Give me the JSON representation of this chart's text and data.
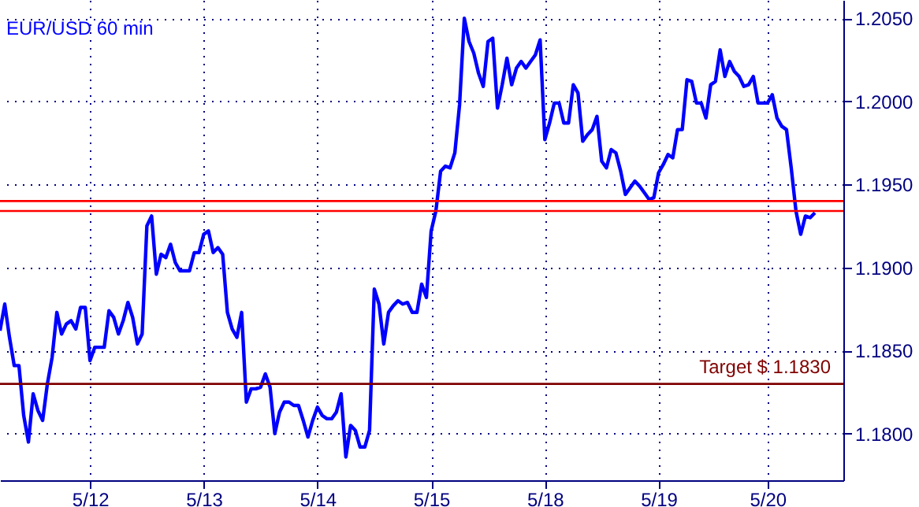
{
  "chart_data": {
    "type": "line",
    "title": "EUR/USD 60 min",
    "categories": [
      null,
      null,
      null,
      null,
      null,
      null,
      null,
      null,
      null,
      null,
      null,
      null,
      null,
      null,
      null,
      null,
      null,
      null,
      null,
      "5/12",
      null,
      null,
      null,
      null,
      null,
      null,
      null,
      null,
      null,
      null,
      null,
      null,
      null,
      null,
      null,
      null,
      null,
      null,
      null,
      null,
      null,
      null,
      null,
      "5/13",
      null,
      null,
      null,
      null,
      null,
      null,
      null,
      null,
      null,
      null,
      null,
      null,
      null,
      null,
      null,
      null,
      null,
      null,
      null,
      null,
      null,
      null,
      null,
      "5/14",
      null,
      null,
      null,
      null,
      null,
      null,
      null,
      null,
      null,
      null,
      null,
      null,
      null,
      null,
      null,
      null,
      null,
      null,
      null,
      null,
      null,
      null,
      null,
      "5/15",
      null,
      null,
      null,
      null,
      null,
      null,
      null,
      null,
      null,
      null,
      null,
      null,
      null,
      null,
      null,
      null,
      null,
      null,
      null,
      null,
      null,
      null,
      null,
      "5/18",
      null,
      null,
      null,
      null,
      null,
      null,
      null,
      null,
      null,
      null,
      null,
      null,
      null,
      null,
      null,
      null,
      null,
      null,
      null,
      null,
      null,
      null,
      null,
      "5/19",
      null,
      null,
      null,
      null,
      null,
      null,
      null,
      null,
      null,
      null,
      null,
      null,
      null,
      null,
      null,
      null,
      null,
      null,
      null,
      null,
      null,
      null,
      "5/20",
      null,
      null,
      null,
      null,
      null,
      null,
      null,
      null,
      null,
      null,
      null,
      null,
      null,
      null,
      null,
      null
    ],
    "series": [
      {
        "color": "#0000ff",
        "values": [
          1.1862,
          1.1878,
          1.1858,
          1.1841,
          1.1841,
          1.1811,
          1.1795,
          1.1824,
          1.1814,
          1.1808,
          1.183,
          1.1846,
          1.1873,
          1.186,
          1.1866,
          1.1868,
          1.1863,
          1.1876,
          1.1876,
          1.1844,
          1.1852,
          1.1852,
          1.1852,
          1.1874,
          1.187,
          1.186,
          1.1868,
          1.1879,
          1.187,
          1.1854,
          1.186,
          1.1925,
          1.1931,
          1.1896,
          1.1908,
          1.1906,
          1.1914,
          1.1903,
          1.1898,
          1.1898,
          1.1898,
          1.1909,
          1.1909,
          1.192,
          1.1922,
          1.1909,
          1.1912,
          1.1908,
          1.1873,
          1.1863,
          1.1858,
          1.1873,
          1.1819,
          1.1827,
          1.1827,
          1.1828,
          1.1836,
          1.1828,
          1.18,
          1.1813,
          1.1819,
          1.1819,
          1.1817,
          1.1817,
          1.1808,
          1.1798,
          1.1808,
          1.1816,
          1.1811,
          1.1809,
          1.1809,
          1.1813,
          1.1824,
          1.1786,
          1.1805,
          1.1802,
          1.1792,
          1.1792,
          1.1802,
          1.1887,
          1.1878,
          1.1854,
          1.1873,
          1.1877,
          1.188,
          1.1878,
          1.1879,
          1.1873,
          1.1873,
          1.189,
          1.1882,
          1.1922,
          1.1934,
          1.1958,
          1.1961,
          1.196,
          1.1969,
          1.1998,
          1.205,
          1.2036,
          1.2029,
          1.2017,
          1.2009,
          1.2036,
          1.2038,
          1.1996,
          1.201,
          1.2026,
          1.201,
          1.202,
          1.2024,
          1.202,
          1.2024,
          1.2028,
          1.2037,
          1.1977,
          1.1987,
          1.1999,
          1.1999,
          1.1987,
          1.1987,
          1.201,
          1.2005,
          1.1976,
          1.198,
          1.1983,
          1.1991,
          1.1964,
          1.196,
          1.1971,
          1.1969,
          1.1958,
          1.1944,
          1.1948,
          1.1952,
          1.1949,
          1.1945,
          1.1941,
          1.1942,
          1.1957,
          1.1962,
          1.1968,
          1.1966,
          1.1983,
          1.1983,
          1.2013,
          1.2012,
          1.1999,
          1.1999,
          1.199,
          1.201,
          1.2012,
          1.2031,
          1.2015,
          1.2024,
          1.2018,
          1.2015,
          1.2009,
          1.201,
          1.2015,
          1.1999,
          1.1999,
          1.1999,
          1.2004,
          1.199,
          1.1985,
          1.1983,
          1.196,
          1.1934,
          1.192,
          1.1931,
          1.193,
          1.1933,
          null,
          null,
          null,
          null,
          null,
          null
        ]
      }
    ],
    "ylim": [
      1.1772,
      1.2061
    ],
    "yticks": [
      {
        "value": 1.18,
        "label": "1.1800"
      },
      {
        "value": 1.185,
        "label": "1.1850"
      },
      {
        "value": 1.19,
        "label": "1.1900"
      },
      {
        "value": 1.195,
        "label": "1.1950"
      },
      {
        "value": 1.2,
        "label": "1.2000"
      },
      {
        "value": 1.205,
        "label": "1.2050"
      }
    ],
    "ref_lines": [
      {
        "axis": "y",
        "value": 1.194,
        "color": "#ff0000"
      },
      {
        "axis": "y",
        "value": 1.1934,
        "color": "#ff0000"
      },
      {
        "axis": "y",
        "value": 1.183,
        "label": "Target $ 1.1830",
        "color": "#800000"
      }
    ],
    "grid": true,
    "marker": "none",
    "line_style": "solid"
  }
}
